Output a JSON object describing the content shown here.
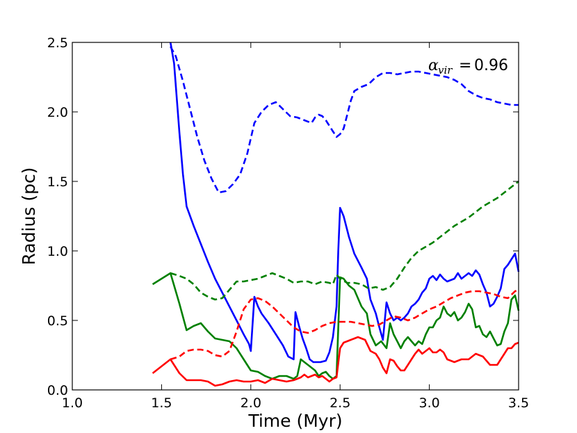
{
  "chart_data": {
    "type": "line",
    "title": "",
    "xlabel": "Time (Myr)",
    "ylabel": "Radius (pc)",
    "xlim": [
      1.0,
      3.5
    ],
    "ylim": [
      0.0,
      2.5
    ],
    "xticks": [
      "1.0",
      "1.5",
      "2.0",
      "2.5",
      "3.0",
      "3.5"
    ],
    "yticks": [
      "0.0",
      "0.5",
      "1.0",
      "1.5",
      "2.0",
      "2.5"
    ],
    "grid": false,
    "legend": "none",
    "annotation": {
      "symbol": "α",
      "subscript": "vir",
      "equals": "=",
      "value": "0.96"
    },
    "series": [
      {
        "color": "#0000ff",
        "style": "solid",
        "x": [
          1.55,
          1.57,
          1.6,
          1.62,
          1.64,
          1.68,
          1.72,
          1.76,
          1.8,
          1.84,
          1.88,
          1.92,
          1.96,
          1.99,
          2.0,
          2.02,
          2.04,
          2.06,
          2.1,
          2.14,
          2.18,
          2.21,
          2.24,
          2.25,
          2.27,
          2.29,
          2.31,
          2.33,
          2.35,
          2.37,
          2.39,
          2.42,
          2.44,
          2.46,
          2.48,
          2.49,
          2.5,
          2.52,
          2.55,
          2.58,
          2.62,
          2.65,
          2.67,
          2.7,
          2.72,
          2.74,
          2.76,
          2.78,
          2.8,
          2.82,
          2.84,
          2.86,
          2.88,
          2.9,
          2.92,
          2.94,
          2.96,
          2.98,
          3.0,
          3.02,
          3.04,
          3.06,
          3.08,
          3.1,
          3.12,
          3.14,
          3.16,
          3.18,
          3.2,
          3.22,
          3.24,
          3.26,
          3.28,
          3.3,
          3.32,
          3.34,
          3.36,
          3.38,
          3.4,
          3.42,
          3.44,
          3.46,
          3.48,
          3.5
        ],
        "y": [
          2.5,
          2.35,
          1.85,
          1.55,
          1.32,
          1.18,
          1.05,
          0.92,
          0.8,
          0.7,
          0.6,
          0.5,
          0.4,
          0.33,
          0.28,
          0.67,
          0.6,
          0.55,
          0.48,
          0.4,
          0.32,
          0.24,
          0.22,
          0.56,
          0.46,
          0.37,
          0.3,
          0.22,
          0.2,
          0.2,
          0.2,
          0.21,
          0.27,
          0.38,
          0.6,
          1.0,
          1.31,
          1.25,
          1.1,
          0.98,
          0.88,
          0.8,
          0.65,
          0.55,
          0.45,
          0.36,
          0.63,
          0.55,
          0.5,
          0.52,
          0.5,
          0.52,
          0.55,
          0.6,
          0.62,
          0.65,
          0.7,
          0.73,
          0.8,
          0.82,
          0.79,
          0.83,
          0.8,
          0.78,
          0.79,
          0.8,
          0.84,
          0.8,
          0.82,
          0.84,
          0.82,
          0.86,
          0.83,
          0.76,
          0.7,
          0.6,
          0.62,
          0.67,
          0.73,
          0.87,
          0.9,
          0.94,
          0.98,
          0.85
        ]
      },
      {
        "color": "#0000ff",
        "style": "dashed",
        "x": [
          1.55,
          1.58,
          1.62,
          1.66,
          1.7,
          1.74,
          1.78,
          1.82,
          1.86,
          1.9,
          1.94,
          1.98,
          2.02,
          2.06,
          2.1,
          2.14,
          2.18,
          2.22,
          2.26,
          2.3,
          2.34,
          2.36,
          2.38,
          2.4,
          2.42,
          2.44,
          2.46,
          2.48,
          2.5,
          2.52,
          2.54,
          2.56,
          2.58,
          2.62,
          2.66,
          2.7,
          2.74,
          2.78,
          2.82,
          2.86,
          2.9,
          2.94,
          2.98,
          3.02,
          3.06,
          3.1,
          3.14,
          3.18,
          3.22,
          3.26,
          3.3,
          3.34,
          3.38,
          3.42,
          3.46,
          3.5
        ],
        "y": [
          2.47,
          2.4,
          2.22,
          2.02,
          1.82,
          1.65,
          1.52,
          1.42,
          1.43,
          1.48,
          1.55,
          1.7,
          1.92,
          2.0,
          2.05,
          2.07,
          2.02,
          1.97,
          1.96,
          1.94,
          1.92,
          1.96,
          1.98,
          1.97,
          1.94,
          1.9,
          1.86,
          1.82,
          1.84,
          1.88,
          1.98,
          2.08,
          2.15,
          2.18,
          2.2,
          2.25,
          2.28,
          2.28,
          2.27,
          2.28,
          2.29,
          2.29,
          2.28,
          2.27,
          2.26,
          2.25,
          2.23,
          2.2,
          2.15,
          2.12,
          2.1,
          2.09,
          2.07,
          2.06,
          2.05,
          2.05
        ]
      },
      {
        "color": "#008000",
        "style": "solid",
        "x": [
          1.45,
          1.5,
          1.55,
          1.6,
          1.64,
          1.68,
          1.72,
          1.76,
          1.8,
          1.84,
          1.88,
          1.92,
          1.96,
          2.0,
          2.04,
          2.08,
          2.12,
          2.16,
          2.2,
          2.24,
          2.26,
          2.28,
          2.3,
          2.32,
          2.34,
          2.36,
          2.38,
          2.4,
          2.42,
          2.44,
          2.46,
          2.48,
          2.5,
          2.52,
          2.55,
          2.58,
          2.62,
          2.65,
          2.67,
          2.7,
          2.73,
          2.76,
          2.78,
          2.8,
          2.82,
          2.84,
          2.86,
          2.88,
          2.9,
          2.92,
          2.94,
          2.96,
          2.98,
          3.0,
          3.02,
          3.04,
          3.06,
          3.08,
          3.1,
          3.12,
          3.14,
          3.16,
          3.18,
          3.2,
          3.22,
          3.24,
          3.26,
          3.28,
          3.3,
          3.32,
          3.34,
          3.36,
          3.38,
          3.4,
          3.42,
          3.44,
          3.46,
          3.48,
          3.5
        ],
        "y": [
          0.76,
          0.8,
          0.84,
          0.62,
          0.43,
          0.46,
          0.48,
          0.42,
          0.37,
          0.36,
          0.35,
          0.3,
          0.22,
          0.14,
          0.13,
          0.1,
          0.08,
          0.1,
          0.1,
          0.08,
          0.1,
          0.22,
          0.2,
          0.18,
          0.16,
          0.14,
          0.1,
          0.12,
          0.13,
          0.1,
          0.08,
          0.1,
          0.81,
          0.8,
          0.75,
          0.72,
          0.6,
          0.55,
          0.4,
          0.32,
          0.35,
          0.3,
          0.48,
          0.4,
          0.35,
          0.3,
          0.35,
          0.38,
          0.35,
          0.32,
          0.35,
          0.33,
          0.4,
          0.45,
          0.45,
          0.5,
          0.52,
          0.6,
          0.55,
          0.53,
          0.56,
          0.5,
          0.52,
          0.56,
          0.62,
          0.58,
          0.45,
          0.46,
          0.4,
          0.38,
          0.42,
          0.37,
          0.32,
          0.33,
          0.42,
          0.48,
          0.65,
          0.68,
          0.57
        ]
      },
      {
        "color": "#008000",
        "style": "dashed",
        "x": [
          1.55,
          1.6,
          1.64,
          1.68,
          1.72,
          1.76,
          1.8,
          1.84,
          1.88,
          1.92,
          1.96,
          2.0,
          2.04,
          2.08,
          2.12,
          2.16,
          2.2,
          2.24,
          2.28,
          2.32,
          2.36,
          2.4,
          2.44,
          2.46,
          2.48,
          2.5,
          2.54,
          2.58,
          2.62,
          2.66,
          2.7,
          2.74,
          2.78,
          2.82,
          2.86,
          2.9,
          2.94,
          2.98,
          3.02,
          3.06,
          3.1,
          3.14,
          3.18,
          3.22,
          3.26,
          3.3,
          3.34,
          3.38,
          3.42,
          3.46,
          3.5
        ],
        "y": [
          0.84,
          0.82,
          0.8,
          0.76,
          0.7,
          0.67,
          0.65,
          0.66,
          0.72,
          0.78,
          0.78,
          0.79,
          0.8,
          0.82,
          0.84,
          0.82,
          0.8,
          0.77,
          0.78,
          0.78,
          0.76,
          0.78,
          0.77,
          0.76,
          0.83,
          0.8,
          0.77,
          0.77,
          0.76,
          0.73,
          0.74,
          0.72,
          0.74,
          0.8,
          0.88,
          0.95,
          1.0,
          1.03,
          1.06,
          1.1,
          1.14,
          1.18,
          1.21,
          1.24,
          1.28,
          1.32,
          1.35,
          1.38,
          1.42,
          1.46,
          1.5
        ]
      },
      {
        "color": "#ff0000",
        "style": "solid",
        "x": [
          1.45,
          1.5,
          1.55,
          1.6,
          1.64,
          1.68,
          1.72,
          1.76,
          1.8,
          1.84,
          1.88,
          1.92,
          1.96,
          2.0,
          2.04,
          2.08,
          2.12,
          2.16,
          2.2,
          2.24,
          2.26,
          2.28,
          2.3,
          2.32,
          2.34,
          2.36,
          2.38,
          2.4,
          2.42,
          2.44,
          2.46,
          2.48,
          2.5,
          2.52,
          2.56,
          2.6,
          2.64,
          2.67,
          2.7,
          2.72,
          2.74,
          2.76,
          2.78,
          2.8,
          2.82,
          2.84,
          2.86,
          2.88,
          2.9,
          2.92,
          2.94,
          2.96,
          2.98,
          3.0,
          3.02,
          3.04,
          3.06,
          3.08,
          3.1,
          3.14,
          3.18,
          3.22,
          3.26,
          3.3,
          3.34,
          3.38,
          3.42,
          3.44,
          3.46,
          3.48,
          3.5
        ],
        "y": [
          0.12,
          0.17,
          0.22,
          0.12,
          0.07,
          0.07,
          0.07,
          0.06,
          0.03,
          0.04,
          0.06,
          0.07,
          0.06,
          0.06,
          0.07,
          0.05,
          0.08,
          0.07,
          0.06,
          0.07,
          0.08,
          0.09,
          0.11,
          0.09,
          0.1,
          0.11,
          0.09,
          0.1,
          0.08,
          0.06,
          0.08,
          0.09,
          0.3,
          0.34,
          0.36,
          0.38,
          0.36,
          0.28,
          0.26,
          0.22,
          0.16,
          0.12,
          0.22,
          0.21,
          0.17,
          0.14,
          0.14,
          0.18,
          0.22,
          0.26,
          0.29,
          0.26,
          0.28,
          0.3,
          0.27,
          0.27,
          0.29,
          0.27,
          0.22,
          0.2,
          0.22,
          0.22,
          0.26,
          0.24,
          0.18,
          0.18,
          0.26,
          0.3,
          0.3,
          0.33,
          0.34
        ]
      },
      {
        "color": "#ff0000",
        "style": "dashed",
        "x": [
          1.55,
          1.6,
          1.64,
          1.68,
          1.72,
          1.76,
          1.8,
          1.84,
          1.88,
          1.92,
          1.96,
          2.0,
          2.04,
          2.08,
          2.12,
          2.16,
          2.2,
          2.24,
          2.28,
          2.32,
          2.36,
          2.4,
          2.44,
          2.48,
          2.52,
          2.56,
          2.6,
          2.64,
          2.68,
          2.72,
          2.76,
          2.8,
          2.84,
          2.88,
          2.92,
          2.96,
          3.0,
          3.04,
          3.08,
          3.12,
          3.16,
          3.2,
          3.24,
          3.28,
          3.32,
          3.36,
          3.4,
          3.44,
          3.48,
          3.5
        ],
        "y": [
          0.22,
          0.24,
          0.28,
          0.29,
          0.29,
          0.28,
          0.25,
          0.24,
          0.28,
          0.42,
          0.58,
          0.65,
          0.66,
          0.64,
          0.6,
          0.55,
          0.5,
          0.45,
          0.42,
          0.41,
          0.43,
          0.46,
          0.48,
          0.49,
          0.49,
          0.49,
          0.48,
          0.47,
          0.46,
          0.47,
          0.5,
          0.53,
          0.52,
          0.5,
          0.52,
          0.55,
          0.58,
          0.6,
          0.63,
          0.66,
          0.68,
          0.7,
          0.71,
          0.71,
          0.7,
          0.69,
          0.67,
          0.66,
          0.71,
          0.72
        ]
      }
    ]
  }
}
